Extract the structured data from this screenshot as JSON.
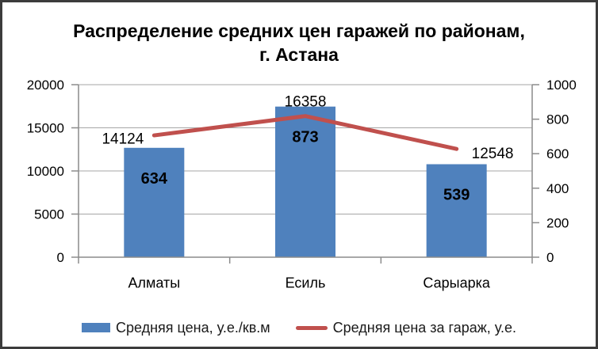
{
  "window": {
    "border_color": "#3c3c3c",
    "background": "#ffffff"
  },
  "title": {
    "line1": "Распределение средних цен гаражей по районам,",
    "line2": "г. Астана"
  },
  "chart_data": {
    "type": "bar+line",
    "title": "Распределение средних цен гаражей по районам, г. Астана",
    "categories": [
      "Алматы",
      "Есиль",
      "Сарыарка"
    ],
    "series": [
      {
        "name": "Средняя цена, у.е./кв.м",
        "type": "bar",
        "axis": "right",
        "values": [
          634,
          873,
          539
        ],
        "color": "#4f81bd",
        "label_color": "#ffffff"
      },
      {
        "name": "Средняя цена за гараж, у.е.",
        "type": "line",
        "axis": "left",
        "values": [
          14124,
          16358,
          12548
        ],
        "color": "#c0504d",
        "label_color": "#000000",
        "label_placements": [
          "left",
          "above",
          "right"
        ]
      }
    ],
    "axes": {
      "left": {
        "min": 0,
        "max": 20000,
        "step": 5000,
        "ticks": [
          "0",
          "5000",
          "10000",
          "15000",
          "20000"
        ]
      },
      "right": {
        "min": 0,
        "max": 1000,
        "step": 200,
        "ticks": [
          "0",
          "200",
          "400",
          "600",
          "800",
          "1000"
        ]
      }
    },
    "grid": "horizontal-left-axis",
    "grid_color": "#a6a6a6",
    "axis_color": "#8c8c8c",
    "legend_position": "bottom"
  }
}
